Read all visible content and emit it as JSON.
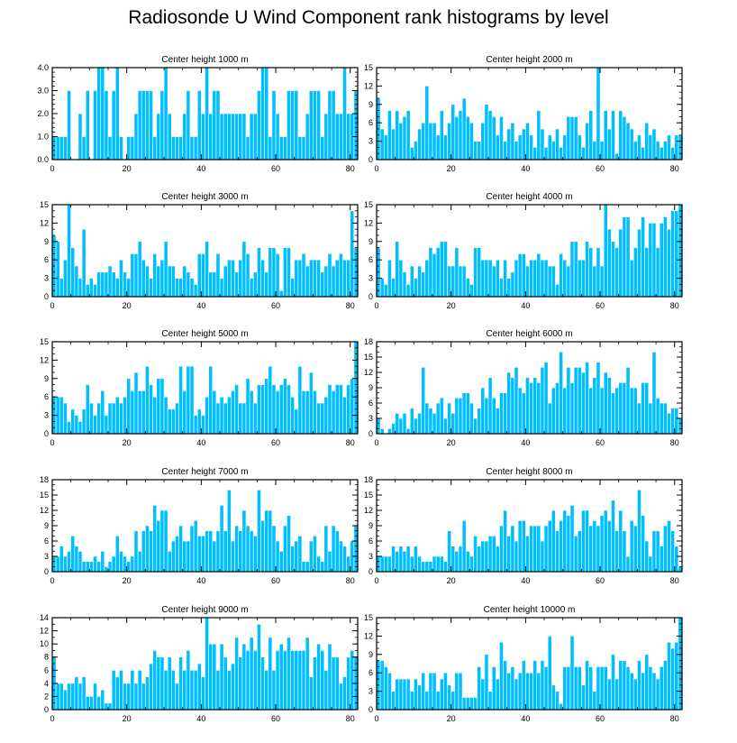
{
  "title": "Radiosonde U Wind Component rank histograms by level",
  "colors": {
    "bar_fill": "#00BFFF",
    "bar_edge": "#FFFFFF",
    "axis": "#000000"
  },
  "chart_data": [
    {
      "type": "bar",
      "title": "Center height 1000 m",
      "xlim": [
        0,
        82
      ],
      "ylim": [
        0,
        4
      ],
      "xticks": [
        0,
        20,
        40,
        60,
        80
      ],
      "yticks": [
        0,
        1,
        2,
        3,
        4
      ],
      "ytick_labels": [
        "0.0",
        "1.0",
        "2.0",
        "3.0",
        "4.0"
      ],
      "values": [
        1,
        1,
        1,
        1,
        3,
        0,
        0,
        2,
        1,
        3,
        0,
        3,
        4,
        4,
        3,
        1,
        3,
        4,
        1,
        0,
        1,
        1,
        2,
        3,
        3,
        3,
        3,
        1,
        2,
        3,
        4,
        2,
        1,
        1,
        1,
        2,
        3,
        1,
        1,
        3,
        2,
        4,
        2,
        3,
        3,
        2,
        2,
        2,
        2,
        2,
        2,
        2,
        1,
        2,
        2,
        3,
        4,
        4,
        1,
        3,
        2,
        1,
        1,
        3,
        3,
        3,
        1,
        1,
        2,
        3,
        3,
        3,
        1,
        2,
        3,
        3,
        2,
        2,
        4,
        2,
        2,
        3
      ]
    },
    {
      "type": "bar",
      "title": "Center height 2000 m",
      "xlim": [
        0,
        82
      ],
      "ylim": [
        0,
        15
      ],
      "xticks": [
        0,
        20,
        40,
        60,
        80
      ],
      "yticks": [
        0,
        3,
        6,
        9,
        12,
        15
      ],
      "ytick_labels": [
        "0",
        "3",
        "6",
        "9",
        "12",
        "15"
      ],
      "values": [
        10,
        5,
        4,
        8,
        5,
        8,
        6,
        7,
        8,
        2,
        3,
        5,
        6,
        12,
        6,
        6,
        4,
        8,
        4,
        6,
        9,
        7,
        8,
        10,
        7,
        6,
        3,
        3,
        6,
        9,
        8,
        7,
        4,
        7,
        3,
        5,
        6,
        3,
        4,
        5,
        6,
        4,
        2,
        8,
        5,
        2,
        4,
        3,
        5,
        2,
        4,
        7,
        7,
        7,
        4,
        2,
        6,
        8,
        3,
        15,
        3,
        8,
        5,
        8,
        1,
        8,
        7,
        6,
        5,
        3,
        4,
        2,
        6,
        4,
        5,
        3,
        2,
        3,
        4,
        2,
        4,
        4,
        5,
        3,
        5,
        5
      ]
    },
    {
      "type": "bar",
      "title": "Center height 3000 m",
      "xlim": [
        0,
        82
      ],
      "ylim": [
        0,
        15
      ],
      "xticks": [
        0,
        20,
        40,
        60,
        80
      ],
      "yticks": [
        0,
        3,
        6,
        9,
        12,
        15
      ],
      "ytick_labels": [
        "0",
        "3",
        "6",
        "9",
        "12",
        "15"
      ],
      "values": [
        10,
        9,
        3,
        6,
        15,
        8,
        5,
        3,
        11,
        2,
        3,
        2,
        4,
        4,
        4,
        5,
        4,
        3,
        6,
        4,
        3,
        7,
        7,
        9,
        6,
        5,
        3,
        7,
        5,
        6,
        9,
        5,
        5,
        3,
        3,
        5,
        4,
        3,
        2,
        7,
        7,
        9,
        4,
        4,
        7,
        3,
        5,
        6,
        6,
        4,
        6,
        9,
        7,
        3,
        4,
        8,
        6,
        4,
        8,
        8,
        7,
        1,
        8,
        8,
        3,
        6,
        6,
        7,
        5,
        6,
        6,
        6,
        4,
        5,
        7,
        5,
        6,
        7,
        6,
        6,
        14,
        8
      ]
    },
    {
      "type": "bar",
      "title": "Center height 4000 m",
      "xlim": [
        0,
        82
      ],
      "ylim": [
        0,
        15
      ],
      "xticks": [
        0,
        20,
        40,
        60,
        80
      ],
      "yticks": [
        0,
        3,
        6,
        9,
        12,
        15
      ],
      "ytick_labels": [
        "0",
        "3",
        "6",
        "9",
        "12",
        "15"
      ],
      "values": [
        8,
        3,
        2,
        6,
        3,
        9,
        6,
        4,
        2,
        5,
        3,
        5,
        4,
        6,
        8,
        7,
        8,
        9,
        9,
        5,
        5,
        8,
        5,
        5,
        3,
        2,
        8,
        8,
        6,
        6,
        6,
        5,
        6,
        3,
        6,
        3,
        4,
        6,
        7,
        7,
        5,
        6,
        6,
        7,
        6,
        6,
        5,
        5,
        2,
        7,
        6,
        5,
        9,
        9,
        6,
        6,
        9,
        8,
        5,
        8,
        5,
        15,
        11,
        9,
        8,
        11,
        13,
        13,
        6,
        8,
        11,
        13,
        8,
        12,
        12,
        8,
        12,
        13,
        11,
        14,
        14,
        15
      ]
    },
    {
      "type": "bar",
      "title": "Center height 5000 m",
      "xlim": [
        0,
        82
      ],
      "ylim": [
        0,
        15
      ],
      "xticks": [
        0,
        20,
        40,
        60,
        80
      ],
      "yticks": [
        0,
        3,
        6,
        9,
        12,
        15
      ],
      "ytick_labels": [
        "0",
        "3",
        "6",
        "9",
        "12",
        "15"
      ],
      "values": [
        6,
        6,
        6,
        5,
        2,
        4,
        3,
        2,
        4,
        8,
        5,
        3,
        5,
        7,
        3,
        5,
        5,
        6,
        5,
        6,
        9,
        7,
        10,
        7,
        7,
        11,
        8,
        6,
        9,
        9,
        6,
        4,
        4,
        5,
        11,
        7,
        11,
        11,
        3,
        4,
        3,
        6,
        11,
        7,
        5,
        6,
        5,
        6,
        7,
        8,
        5,
        5,
        9,
        7,
        5,
        8,
        8,
        9,
        11,
        8,
        7,
        8,
        9,
        8,
        6,
        4,
        11,
        7,
        7,
        10,
        7,
        5,
        5,
        6,
        8,
        7,
        8,
        8,
        6,
        8,
        9,
        15
      ]
    },
    {
      "type": "bar",
      "title": "Center height 6000 m",
      "xlim": [
        0,
        82
      ],
      "ylim": [
        0,
        18
      ],
      "xticks": [
        0,
        20,
        40,
        60,
        80
      ],
      "yticks": [
        0,
        3,
        6,
        9,
        12,
        15,
        18
      ],
      "ytick_labels": [
        "0",
        "3",
        "6",
        "9",
        "12",
        "15",
        "18"
      ],
      "values": [
        3,
        1,
        0,
        1,
        2,
        4,
        3,
        4,
        1,
        5,
        3,
        4,
        13,
        6,
        5,
        4,
        6,
        7,
        3,
        6,
        4,
        7,
        7,
        8,
        8,
        6,
        3,
        5,
        9,
        7,
        11,
        7,
        5,
        8,
        8,
        12,
        11,
        13,
        9,
        8,
        11,
        10,
        11,
        10,
        13,
        14,
        6,
        9,
        10,
        16,
        9,
        13,
        10,
        13,
        13,
        12,
        14,
        9,
        11,
        14,
        9,
        12,
        11,
        8,
        9,
        10,
        10,
        13,
        9,
        9,
        6,
        10,
        10,
        6,
        16,
        7,
        6,
        6,
        4,
        5,
        5,
        3,
        2
      ]
    },
    {
      "type": "bar",
      "title": "Center height 7000 m",
      "xlim": [
        0,
        82
      ],
      "ylim": [
        0,
        18
      ],
      "xticks": [
        0,
        20,
        40,
        60,
        80
      ],
      "yticks": [
        0,
        3,
        6,
        9,
        12,
        15,
        18
      ],
      "ytick_labels": [
        "0",
        "3",
        "6",
        "9",
        "12",
        "15",
        "18"
      ],
      "values": [
        3,
        3,
        5,
        3,
        4,
        7,
        5,
        4,
        2,
        2,
        2,
        3,
        2,
        4,
        1,
        2,
        3,
        7,
        4,
        3,
        2,
        3,
        8,
        4,
        8,
        9,
        8,
        13,
        10,
        12,
        12,
        4,
        6,
        7,
        9,
        6,
        6,
        9,
        10,
        7,
        7,
        8,
        8,
        6,
        8,
        13,
        8,
        16,
        6,
        9,
        8,
        12,
        9,
        8,
        7,
        16,
        10,
        12,
        12,
        9,
        6,
        4,
        9,
        11,
        5,
        6,
        7,
        2,
        2,
        6,
        7,
        3,
        2,
        9,
        4,
        9,
        8,
        6,
        5,
        3,
        6,
        9,
        8
      ]
    },
    {
      "type": "bar",
      "title": "Center height 8000 m",
      "xlim": [
        0,
        82
      ],
      "ylim": [
        0,
        18
      ],
      "xticks": [
        0,
        20,
        40,
        60,
        80
      ],
      "yticks": [
        0,
        3,
        6,
        9,
        12,
        15,
        18
      ],
      "ytick_labels": [
        "0",
        "3",
        "6",
        "9",
        "12",
        "15",
        "18"
      ],
      "values": [
        3,
        3,
        3,
        3,
        5,
        4,
        5,
        4,
        5,
        3,
        5,
        3,
        2,
        2,
        2,
        3,
        3,
        3,
        2,
        8,
        5,
        4,
        5,
        10,
        4,
        3,
        7,
        5,
        6,
        6,
        7,
        7,
        5,
        9,
        12,
        7,
        9,
        6,
        10,
        10,
        7,
        9,
        9,
        9,
        6,
        9,
        10,
        12,
        8,
        10,
        12,
        11,
        13,
        7,
        8,
        12,
        12,
        9,
        10,
        9,
        11,
        12,
        10,
        14,
        8,
        12,
        8,
        3,
        10,
        9,
        16,
        11,
        6,
        3,
        8,
        8,
        5,
        9,
        10,
        8,
        5,
        1,
        6
      ]
    },
    {
      "type": "bar",
      "title": "Center height 9000 m",
      "xlim": [
        0,
        82
      ],
      "ylim": [
        0,
        14
      ],
      "xticks": [
        0,
        20,
        40,
        60,
        80
      ],
      "yticks": [
        0,
        2,
        4,
        6,
        8,
        10,
        12,
        14
      ],
      "ytick_labels": [
        "0",
        "2",
        "4",
        "6",
        "8",
        "10",
        "12",
        "14"
      ],
      "values": [
        8,
        4,
        4,
        3,
        4,
        4,
        5,
        4,
        5,
        2,
        2,
        4,
        2,
        3,
        1,
        1,
        6,
        5,
        6,
        4,
        4,
        6,
        4,
        6,
        4,
        5,
        7,
        9,
        8,
        8,
        6,
        8,
        6,
        4,
        8,
        6,
        9,
        6,
        6,
        7,
        5,
        14,
        10,
        10,
        6,
        10,
        8,
        6,
        7,
        11,
        8,
        10,
        9,
        11,
        9,
        13,
        8,
        6,
        11,
        6,
        9,
        10,
        9,
        11,
        9,
        9,
        9,
        9,
        11,
        5,
        8,
        10,
        9,
        6,
        10,
        8,
        8,
        4,
        5,
        8,
        9,
        8
      ]
    },
    {
      "type": "bar",
      "title": "Center height 10000 m",
      "xlim": [
        0,
        82
      ],
      "ylim": [
        0,
        15
      ],
      "xticks": [
        0,
        20,
        40,
        60,
        80
      ],
      "yticks": [
        0,
        3,
        6,
        9,
        12,
        15
      ],
      "ytick_labels": [
        "0",
        "3",
        "6",
        "9",
        "12",
        "15"
      ],
      "values": [
        8,
        8,
        7,
        6,
        3,
        5,
        5,
        5,
        5,
        3,
        5,
        4,
        6,
        3,
        6,
        6,
        3,
        5,
        6,
        4,
        3,
        6,
        6,
        2,
        2,
        2,
        2,
        7,
        5,
        9,
        3,
        7,
        5,
        11,
        8,
        6,
        7,
        5,
        6,
        8,
        6,
        6,
        8,
        6,
        8,
        7,
        12,
        4,
        3,
        1,
        7,
        7,
        12,
        7,
        7,
        4,
        8,
        7,
        3,
        7,
        7,
        7,
        5,
        9,
        5,
        8,
        8,
        7,
        6,
        5,
        8,
        6,
        9,
        7,
        6,
        5,
        7,
        8,
        11,
        10,
        11,
        15,
        15
      ]
    }
  ]
}
